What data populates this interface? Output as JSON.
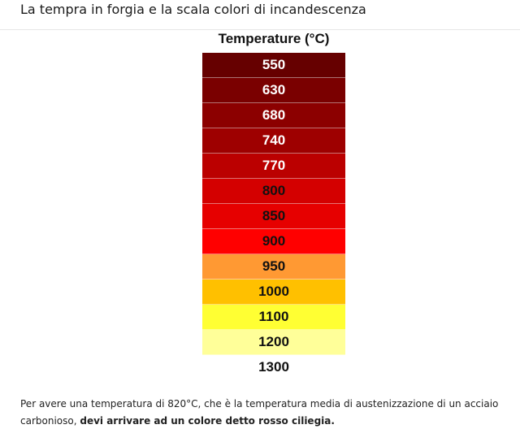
{
  "page": {
    "title": "La tempra in forgia e la scala colori di incandescenza"
  },
  "scale": {
    "header": "Temperature (°C)",
    "rows": [
      {
        "label": "550",
        "bg": "#660000",
        "fg": "#ffffff"
      },
      {
        "label": "630",
        "bg": "#7a0000",
        "fg": "#ffffff"
      },
      {
        "label": "680",
        "bg": "#8c0000",
        "fg": "#ffffff"
      },
      {
        "label": "740",
        "bg": "#9e0000",
        "fg": "#ffffff"
      },
      {
        "label": "770",
        "bg": "#bb0000",
        "fg": "#ffffff"
      },
      {
        "label": "800",
        "bg": "#d40000",
        "fg": "#111111"
      },
      {
        "label": "850",
        "bg": "#e60000",
        "fg": "#111111"
      },
      {
        "label": "900",
        "bg": "#ff0000",
        "fg": "#111111"
      },
      {
        "label": "950",
        "bg": "#ff9933",
        "fg": "#111111"
      },
      {
        "label": "1000",
        "bg": "#ffc000",
        "fg": "#111111"
      },
      {
        "label": "1100",
        "bg": "#ffff33",
        "fg": "#111111"
      },
      {
        "label": "1200",
        "bg": "#ffff99",
        "fg": "#111111"
      },
      {
        "label": "1300",
        "bg": "#ffffff",
        "fg": "#111111"
      }
    ]
  },
  "caption": {
    "text": "Per avere una temperatura di 820°C, che è la temperatura media di austenizzazione di un acciaio carbonioso, ",
    "bold": "devi arrivare ad un colore detto rosso ciliegia."
  }
}
